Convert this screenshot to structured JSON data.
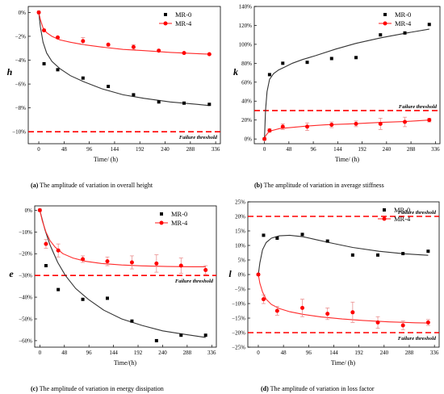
{
  "colors": {
    "mr0": "#000000",
    "mr4": "#ff0000",
    "threshold": "#ff0000",
    "fit_mr0": "#333333",
    "fit_mr4": "#ff2a2a",
    "error_bar": "#e88080"
  },
  "chart_data": [
    {
      "id": "a",
      "type": "scatter",
      "ylabel": "h",
      "xlabel": "Time/ (h)",
      "caption_tag": "(a)",
      "caption_text": " The amplitude of variation in overall height",
      "xlim": [
        -20,
        345
      ],
      "ylim": [
        -11,
        0.5
      ],
      "xticks": [
        0,
        48,
        96,
        144,
        192,
        240,
        288,
        336
      ],
      "yticks": [
        0,
        -2,
        -4,
        -6,
        -8,
        -10
      ],
      "ytick_labels": [
        "0%",
        "−2%",
        "−4%",
        "−6%",
        "−8%",
        "−10%"
      ],
      "legend": [
        "MR-0",
        "MR-4"
      ],
      "threshold": {
        "value": -10,
        "label": "Failure threshold"
      },
      "series": [
        {
          "name": "MR-0",
          "marker": "square",
          "x": [
            0,
            10,
            36,
            84,
            132,
            180,
            228,
            276,
            324
          ],
          "y": [
            0,
            -4.3,
            -4.8,
            -5.5,
            -6.2,
            -6.9,
            -7.5,
            -7.6,
            -7.7
          ]
        },
        {
          "name": "MR-4",
          "marker": "circle",
          "x": [
            0,
            10,
            36,
            84,
            132,
            180,
            228,
            276,
            324
          ],
          "y": [
            0,
            -1.5,
            -2.1,
            -2.4,
            -2.7,
            -2.9,
            -3.2,
            -3.4,
            -3.5
          ],
          "err": [
            0,
            0,
            0,
            0.3,
            0,
            0.2,
            0,
            0,
            0
          ]
        }
      ],
      "fits": [
        {
          "series": "MR-0",
          "x": [
            0,
            3,
            8,
            15,
            25,
            40,
            60,
            85,
            120,
            160,
            200,
            250,
            300,
            324
          ],
          "y": [
            0,
            -1.2,
            -2.5,
            -3.4,
            -4.1,
            -4.7,
            -5.3,
            -5.8,
            -6.4,
            -6.9,
            -7.2,
            -7.5,
            -7.7,
            -7.8
          ]
        },
        {
          "series": "MR-4",
          "x": [
            0,
            3,
            8,
            15,
            25,
            40,
            60,
            85,
            120,
            160,
            200,
            250,
            300,
            324
          ],
          "y": [
            0,
            -0.6,
            -1.3,
            -1.7,
            -2.0,
            -2.3,
            -2.5,
            -2.7,
            -2.9,
            -3.1,
            -3.2,
            -3.35,
            -3.45,
            -3.5
          ]
        }
      ]
    },
    {
      "id": "b",
      "type": "scatter",
      "ylabel": "k",
      "xlabel": "Time/ (h)",
      "caption_tag": "(b)",
      "caption_text": " The amplitude of variation in average stiffness",
      "xlim": [
        -20,
        345
      ],
      "ylim": [
        -5,
        140
      ],
      "xticks": [
        0,
        48,
        96,
        144,
        192,
        240,
        288,
        336
      ],
      "yticks": [
        0,
        20,
        40,
        60,
        80,
        100,
        120,
        140
      ],
      "ytick_labels": [
        "0%",
        "20%",
        "40%",
        "60%",
        "80%",
        "100%",
        "120%",
        "140%"
      ],
      "legend": [
        "MR-0",
        "MR-4"
      ],
      "threshold": {
        "value": 30,
        "label": "Failure threshold"
      },
      "series": [
        {
          "name": "MR-0",
          "marker": "square",
          "x": [
            0,
            10,
            36,
            84,
            132,
            180,
            228,
            276,
            324
          ],
          "y": [
            0,
            68,
            80,
            81,
            85,
            86,
            110,
            112,
            121
          ]
        },
        {
          "name": "MR-4",
          "marker": "circle",
          "x": [
            0,
            10,
            36,
            84,
            132,
            180,
            228,
            276,
            324
          ],
          "y": [
            0,
            9,
            13,
            13,
            15,
            16,
            16,
            18,
            20
          ],
          "err": [
            0,
            2,
            3,
            4,
            3,
            3,
            6,
            5,
            2
          ]
        }
      ],
      "fits": [
        {
          "series": "MR-0",
          "x": [
            0,
            2,
            5,
            10,
            18,
            28,
            40,
            55,
            75,
            100,
            140,
            180,
            230,
            280,
            324
          ],
          "y": [
            0,
            30,
            50,
            63,
            69,
            73,
            76,
            80,
            84,
            88,
            95,
            101,
            107,
            112,
            116
          ]
        },
        {
          "series": "MR-4",
          "x": [
            0,
            3,
            8,
            15,
            30,
            50,
            80,
            120,
            170,
            230,
            280,
            324
          ],
          "y": [
            0,
            4,
            7,
            9,
            11,
            12,
            13.5,
            15,
            16,
            17.5,
            18.5,
            20
          ]
        }
      ]
    },
    {
      "id": "c",
      "type": "scatter",
      "ylabel": "e",
      "xlabel": "Time/(h)",
      "caption_tag": "(c)",
      "caption_text": " The amplitude of variation in energy dissipation",
      "xlim": [
        -10,
        345
      ],
      "ylim": [
        -63,
        2
      ],
      "xticks": [
        0,
        48,
        96,
        144,
        192,
        240,
        288,
        336
      ],
      "yticks": [
        0,
        -10,
        -20,
        -30,
        -40,
        -50,
        -60
      ],
      "ytick_labels": [
        "0%",
        "−10%",
        "−20%",
        "−30%",
        "−40%",
        "−50%",
        "−60%"
      ],
      "legend": [
        "MR-0",
        "MR-4"
      ],
      "threshold": {
        "value": -30,
        "label": "Failure threshold"
      },
      "series": [
        {
          "name": "MR-0",
          "marker": "square",
          "x": [
            0,
            12,
            36,
            84,
            132,
            180,
            228,
            276,
            324
          ],
          "y": [
            0,
            -25.5,
            -36.5,
            -41,
            -40.5,
            -51,
            -60,
            -57.5,
            -57.5
          ]
        },
        {
          "name": "MR-4",
          "marker": "circle",
          "x": [
            0,
            12,
            36,
            84,
            132,
            180,
            228,
            276,
            324
          ],
          "y": [
            0,
            -15.5,
            -18.5,
            -22.5,
            -23.5,
            -24,
            -24.5,
            -25.5,
            -27.5
          ],
          "err": [
            0,
            2,
            3,
            1.5,
            2,
            3,
            4,
            3.5,
            2
          ]
        }
      ],
      "fits": [
        {
          "series": "MR-0",
          "x": [
            0,
            10,
            20,
            35,
            50,
            70,
            95,
            125,
            160,
            200,
            240,
            280,
            324
          ],
          "y": [
            0,
            -9,
            -16,
            -24,
            -30,
            -36,
            -41,
            -46,
            -50,
            -53,
            -55.5,
            -57,
            -58.5
          ]
        },
        {
          "series": "MR-4",
          "x": [
            0,
            5,
            12,
            20,
            30,
            45,
            65,
            90,
            120,
            160,
            200,
            250,
            300,
            324
          ],
          "y": [
            0,
            -5,
            -10,
            -14,
            -17,
            -20,
            -22,
            -23.5,
            -24.5,
            -25.2,
            -25.6,
            -25.9,
            -26,
            -26
          ]
        }
      ]
    },
    {
      "id": "d",
      "type": "scatter",
      "ylabel": "l",
      "xlabel": "Time/ (h)",
      "caption_tag": "(d)",
      "caption_text": " The amplitude of variation in loss factor",
      "xlim": [
        -20,
        345
      ],
      "ylim": [
        -25,
        25
      ],
      "xticks": [
        0,
        48,
        96,
        144,
        192,
        240,
        288,
        336
      ],
      "yticks": [
        25,
        20,
        15,
        10,
        5,
        0,
        -5,
        -10,
        -15,
        -20,
        -25
      ],
      "ytick_labels": [
        "25%",
        "20%",
        "15%",
        "10%",
        "5%",
        "0%",
        "−5%",
        "−10%",
        "−15%",
        "−20%",
        "−25%"
      ],
      "legend": [
        "MR-0",
        "MR-4"
      ],
      "threshold": {
        "value": 20,
        "value2": -20,
        "label": "Failure threshold"
      },
      "series": [
        {
          "name": "MR-0",
          "marker": "square",
          "x": [
            0,
            10,
            36,
            84,
            132,
            180,
            228,
            276,
            324
          ],
          "y": [
            0,
            13.5,
            12.5,
            13.8,
            11.5,
            6.7,
            6.7,
            7.2,
            8
          ]
        },
        {
          "name": "MR-4",
          "marker": "circle",
          "x": [
            0,
            10,
            36,
            84,
            132,
            180,
            228,
            276,
            324
          ],
          "y": [
            0,
            -8.5,
            -12.5,
            -11.5,
            -13.5,
            -13,
            -16.5,
            -17.5,
            -16.5
          ],
          "err": [
            0,
            1.5,
            1.5,
            3,
            2,
            3.5,
            2,
            1.5,
            1
          ]
        }
      ],
      "fits": [
        {
          "series": "MR-0",
          "x": [
            0,
            3,
            8,
            15,
            25,
            40,
            60,
            85,
            110,
            140,
            180,
            230,
            280,
            324
          ],
          "y": [
            0,
            4,
            8.5,
            11,
            12.5,
            13.3,
            13.5,
            13,
            12,
            10.8,
            9.3,
            8,
            7.1,
            6.6
          ]
        },
        {
          "series": "MR-4",
          "x": [
            0,
            3,
            8,
            15,
            25,
            40,
            60,
            85,
            120,
            160,
            200,
            250,
            300,
            324
          ],
          "y": [
            0,
            -3,
            -6,
            -8.5,
            -10.3,
            -11.7,
            -12.8,
            -13.7,
            -14.6,
            -15.3,
            -15.8,
            -16.3,
            -16.6,
            -16.7
          ]
        }
      ]
    }
  ]
}
